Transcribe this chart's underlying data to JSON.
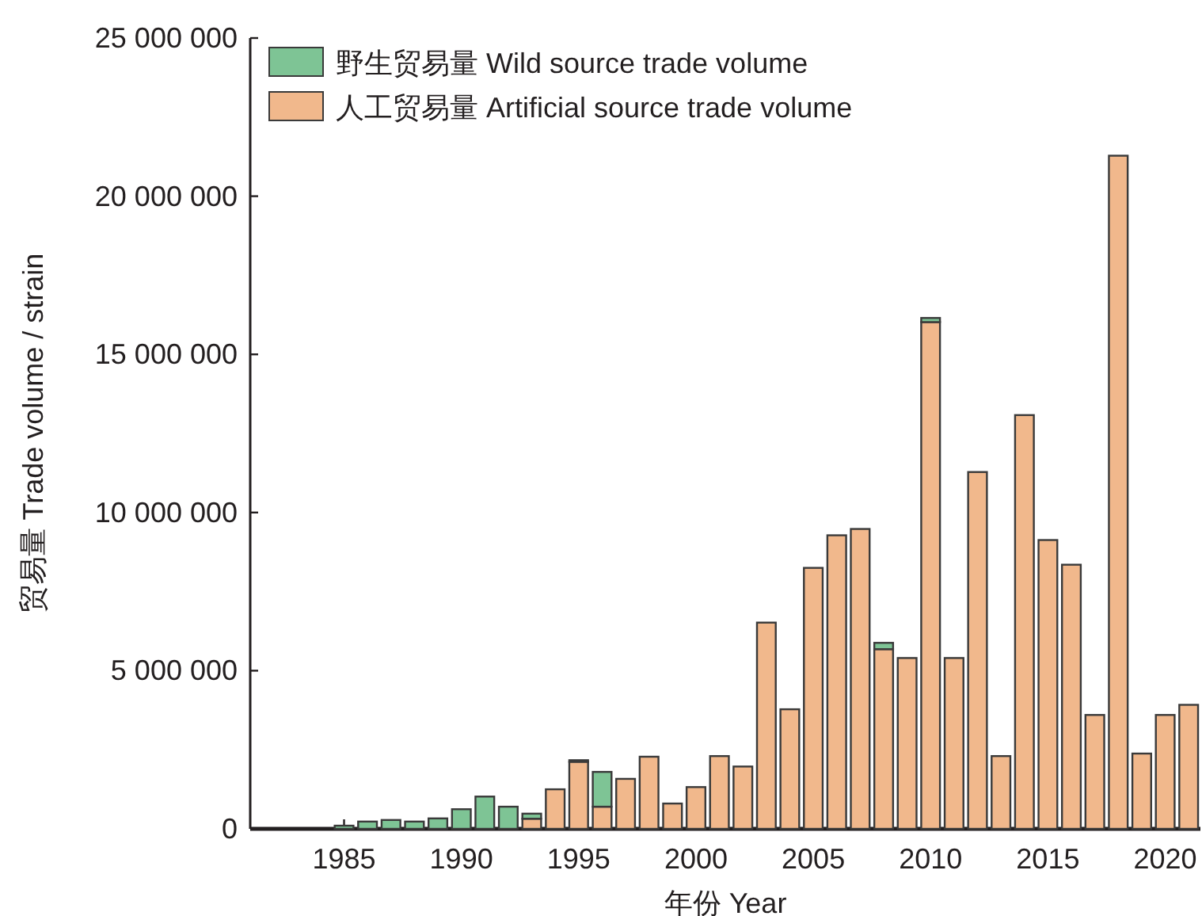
{
  "chart_data": {
    "type": "bar",
    "stacked": true,
    "xlabel": "年份 Year",
    "ylabel": "贸易量 Trade volume / strain",
    "legend": "top left",
    "x": [
      1982,
      1983,
      1984,
      1985,
      1986,
      1987,
      1988,
      1989,
      1990,
      1991,
      1992,
      1993,
      1994,
      1995,
      1996,
      1997,
      1998,
      1999,
      2000,
      2001,
      2002,
      2003,
      2004,
      2005,
      2006,
      2007,
      2008,
      2009,
      2010,
      2011,
      2012,
      2013,
      2014,
      2015,
      2016,
      2017,
      2018,
      2019,
      2020,
      2021
    ],
    "series": [
      {
        "name": "人工贸易量 Artificial source trade volume",
        "color": "#f1b88c",
        "values": [
          0,
          0,
          0,
          0,
          0,
          0,
          0,
          0,
          0,
          0,
          0,
          320000,
          1250000,
          2120000,
          700000,
          1580000,
          2280000,
          800000,
          1320000,
          2300000,
          1970000,
          6520000,
          3780000,
          8250000,
          9280000,
          9480000,
          5680000,
          5400000,
          16020000,
          5400000,
          11280000,
          2300000,
          13080000,
          9130000,
          8350000,
          3600000,
          21280000,
          2380000,
          3600000,
          3920000
        ]
      },
      {
        "name": "野生贸易量 Wild source trade volume",
        "color": "#7ec495",
        "values": [
          0,
          0,
          0,
          100000,
          230000,
          280000,
          230000,
          330000,
          620000,
          1020000,
          700000,
          160000,
          0,
          50000,
          1100000,
          0,
          0,
          0,
          0,
          0,
          0,
          0,
          0,
          0,
          0,
          0,
          200000,
          0,
          130000,
          0,
          0,
          0,
          0,
          0,
          0,
          0,
          0,
          0,
          0,
          0
        ]
      }
    ],
    "xlim": [
      1981,
      2021.5
    ],
    "ylim": [
      0,
      25000000
    ],
    "xticks": [
      1985,
      1990,
      1995,
      2000,
      2005,
      2010,
      2015,
      2020
    ],
    "yticks": [
      {
        "value": 0,
        "label": "0"
      },
      {
        "value": 5000000,
        "label": "5 000 000"
      },
      {
        "value": 10000000,
        "label": "10 000 000"
      },
      {
        "value": 15000000,
        "label": "15 000 000"
      },
      {
        "value": 20000000,
        "label": "20 000 000"
      },
      {
        "value": 25000000,
        "label": "25 000 000"
      }
    ]
  }
}
